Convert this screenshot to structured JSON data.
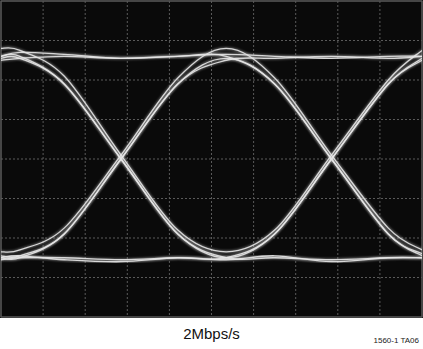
{
  "chart_data": {
    "type": "line",
    "title": "2Mbps/s",
    "annotation": "1560-1 TA06",
    "x": [
      0,
      0.45,
      1.5,
      2.85,
      4.2,
      5.35,
      6.5,
      7.85,
      9.2,
      10
    ],
    "series": [
      {
        "color": "#e6e6e6",
        "values": [
          -2.5,
          -2.5,
          -1.9,
          0,
          1.9,
          2.55,
          1.9,
          0,
          -1.9,
          -2.4
        ]
      },
      {
        "color": "#e6e6e6",
        "values": [
          2.6,
          2.6,
          1.9,
          0,
          -1.9,
          -2.5,
          -1.9,
          0,
          1.9,
          2.5
        ]
      },
      {
        "color": "#e6e6e6",
        "values": [
          2.6,
          2.7,
          2.65,
          2.55,
          2.6,
          2.65,
          2.6,
          2.55,
          2.6,
          2.6
        ]
      },
      {
        "color": "#e6e6e6",
        "values": [
          -2.5,
          -2.45,
          -2.55,
          -2.6,
          -2.5,
          -2.55,
          -2.45,
          -2.6,
          -2.5,
          -2.5
        ]
      },
      {
        "color": "#e6e6e6",
        "values": [
          2.5,
          2.55,
          2.6,
          2.55,
          2.6,
          2.6,
          1.9,
          0,
          -1.9,
          -2.45
        ]
      },
      {
        "color": "#e6e6e6",
        "values": [
          -2.55,
          -2.5,
          -2.5,
          -2.55,
          -2.5,
          -2.5,
          -1.9,
          0,
          1.9,
          2.55
        ]
      },
      {
        "color": "#e6e6e6",
        "values": [
          2.55,
          2.55,
          1.9,
          0,
          -1.9,
          -2.5,
          -2.5,
          -2.55,
          -2.5,
          -2.5
        ]
      },
      {
        "color": "#e6e6e6",
        "values": [
          -2.45,
          -2.45,
          -1.9,
          0,
          1.9,
          2.5,
          2.55,
          2.6,
          2.55,
          2.6
        ]
      },
      {
        "color": "#e6e6e6",
        "values": [
          2.8,
          2.75,
          2.1,
          0.1,
          -1.8,
          -2.35,
          -1.8,
          0.1,
          2.0,
          2.75
        ]
      },
      {
        "color": "#e6e6e6",
        "values": [
          -2.35,
          -2.3,
          -1.75,
          0.1,
          2.05,
          2.8,
          2.05,
          0.1,
          -1.75,
          -2.3
        ]
      }
    ],
    "xlim": [
      0,
      10
    ],
    "ylim": [
      -4,
      4
    ],
    "xticks": [
      0,
      1,
      2,
      3,
      4,
      5,
      6,
      7,
      8,
      9,
      10
    ],
    "yticks": [
      -4,
      -3,
      -2,
      -1,
      0,
      1,
      2,
      3,
      4
    ],
    "grid": true,
    "tick_labels": false
  }
}
